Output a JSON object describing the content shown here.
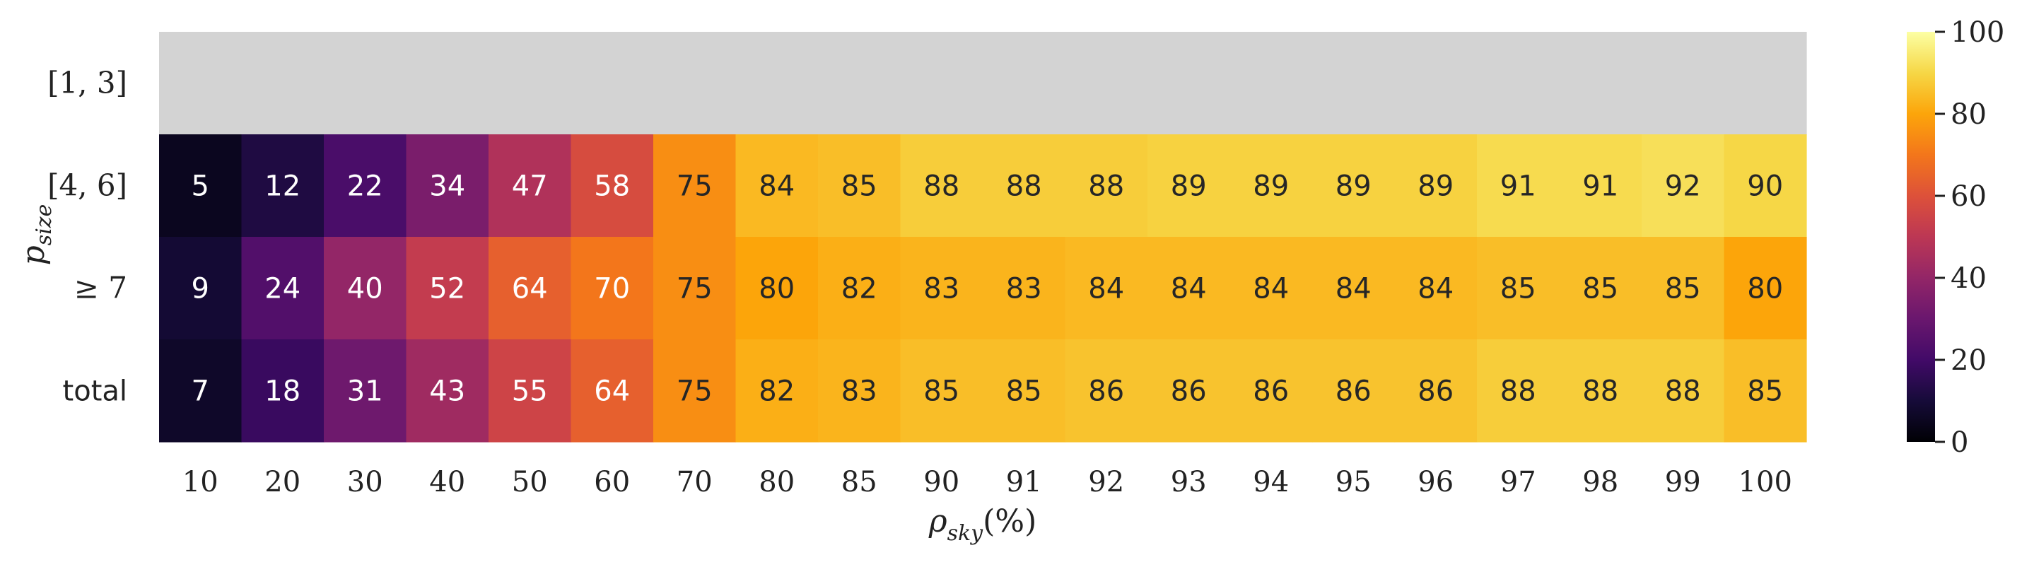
{
  "chart_data": {
    "type": "heatmap",
    "x_label_main": "ρ",
    "x_label_sub": "sky",
    "x_label_tail": "(%)",
    "y_label_main": "p",
    "y_label_sub": "size",
    "columns": [
      "10",
      "20",
      "30",
      "40",
      "50",
      "60",
      "70",
      "80",
      "85",
      "90",
      "91",
      "92",
      "93",
      "94",
      "95",
      "96",
      "97",
      "98",
      "99",
      "100"
    ],
    "rows": [
      {
        "label": "[1, 3]",
        "values": [
          null,
          null,
          null,
          null,
          null,
          null,
          null,
          null,
          null,
          null,
          null,
          null,
          null,
          null,
          null,
          null,
          null,
          null,
          null,
          null
        ]
      },
      {
        "label": "[4, 6]",
        "values": [
          5,
          12,
          22,
          34,
          47,
          58,
          75,
          84,
          85,
          88,
          88,
          88,
          89,
          89,
          89,
          89,
          91,
          91,
          92,
          90
        ]
      },
      {
        "label": "≥ 7",
        "values": [
          9,
          24,
          40,
          52,
          64,
          70,
          75,
          80,
          82,
          83,
          83,
          84,
          84,
          84,
          84,
          84,
          85,
          85,
          85,
          80
        ]
      },
      {
        "label": "total",
        "values": [
          7,
          18,
          31,
          43,
          55,
          64,
          75,
          82,
          83,
          85,
          85,
          86,
          86,
          86,
          86,
          86,
          88,
          88,
          88,
          85
        ]
      }
    ],
    "colorscale": "inferno",
    "color_range": [
      0,
      100
    ],
    "colorbar_ticks": [
      "0",
      "20",
      "40",
      "60",
      "80",
      "100"
    ],
    "missing_color": "#d3d3d3"
  }
}
